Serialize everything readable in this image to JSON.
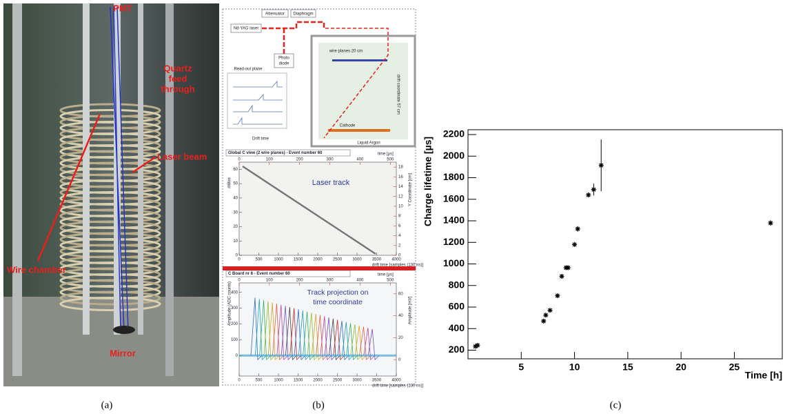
{
  "photo": {
    "labels": {
      "pmt": "PMT",
      "quartz": [
        "Quartz",
        "feed",
        "through"
      ],
      "laser": "Laser beam",
      "wire": "Wire chamber",
      "mirror": "Mirror"
    }
  },
  "diagram": {
    "attenuator": "Attenuator",
    "diaphragm": "Diaphragm",
    "laser": "Nd-YAG laser",
    "photodiode": [
      "Photo",
      "diode"
    ],
    "readout": "Read-out plane",
    "drift": "Drift time",
    "wireplanes": "wire planes 20 cm",
    "driftcoord": "drift coordinate 57 cm",
    "cathode": "Cathode",
    "argon": "Liquid Argon"
  },
  "event_display_1": {
    "title": "Global C view (2 wire planes) - Event number 60",
    "top_label": "time [µs]",
    "x_label": "drift time [samples (130 ns)]",
    "y_label": "#Wire",
    "y2_label": "Y Coordinate [cm]",
    "annotation": "Laser track",
    "xlim": [
      0,
      4000
    ],
    "xticks": [
      0,
      500,
      1000,
      1500,
      2000,
      2500,
      3000,
      3500,
      4000
    ],
    "toplim": [
      0,
      520
    ],
    "topticks": [
      0,
      100,
      200,
      300,
      400,
      500
    ],
    "ylim": [
      0,
      65
    ],
    "yticks": [
      0,
      10,
      20,
      30,
      40,
      50,
      60
    ],
    "y2lim": [
      0,
      19
    ],
    "y2ticks": [
      0,
      2,
      4,
      6,
      8,
      10,
      12,
      14,
      16,
      18
    ]
  },
  "event_display_2": {
    "title": "C Board nr 8 - Event number 60",
    "top_label": "time [µs]",
    "x_label": "drift time [samples (130 ns)]",
    "y_label": "Amplitude (ADC counts)",
    "y2_label": "Amplitude [mV]",
    "annotation": [
      "Track projection on",
      "time coordinate"
    ],
    "xlim": [
      0,
      4000
    ],
    "xticks": [
      0,
      500,
      1000,
      1500,
      2000,
      2500,
      3000,
      3500,
      4000
    ],
    "toplim": [
      0,
      520
    ],
    "topticks": [
      0,
      100,
      200,
      300,
      400,
      500
    ],
    "ylim": [
      -130,
      460
    ],
    "yticks": [
      0,
      100,
      200,
      300,
      400
    ],
    "y2lim": [
      -15,
      70
    ],
    "y2ticks": [
      0,
      20,
      40,
      60
    ]
  },
  "chart_data": {
    "type": "scatter",
    "x_label": "Time [h]",
    "y_label": "Charge lifetime [µs]",
    "color": "#000000",
    "x": [
      0.7,
      0.9,
      7.1,
      7.3,
      7.7,
      8.4,
      8.8,
      9.2,
      9.4,
      10.0,
      10.3,
      11.3,
      11.8,
      12.5,
      28.4
    ],
    "values": [
      235,
      245,
      470,
      525,
      570,
      705,
      885,
      965,
      965,
      1180,
      1325,
      1640,
      1690,
      1915,
      1380
    ],
    "errors": [
      10,
      10,
      10,
      10,
      10,
      10,
      10,
      10,
      10,
      15,
      25,
      20,
      55,
      240,
      25
    ],
    "xlim": [
      0,
      29.5
    ],
    "xticks": [
      5,
      10,
      15,
      20,
      25
    ],
    "ylim": [
      120,
      2245
    ],
    "yticks": [
      200,
      400,
      600,
      800,
      1000,
      1200,
      1400,
      1600,
      1800,
      2000,
      2200
    ]
  },
  "captions": [
    "(a)",
    "(b)",
    "(c)"
  ]
}
